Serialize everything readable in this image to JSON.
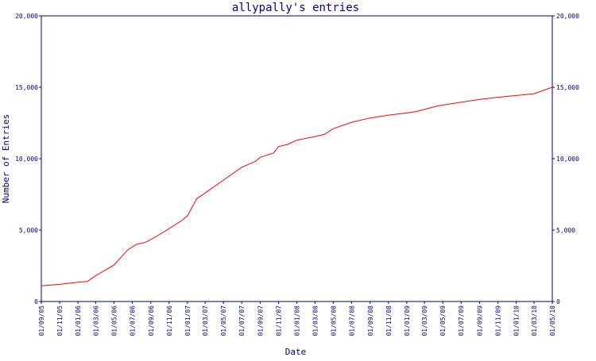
{
  "chart_data": {
    "type": "line",
    "title": "allypally's entries",
    "xlabel": "Date",
    "ylabel": "Number of Entries",
    "y_ticks": [
      "0",
      "5,000",
      "10,000",
      "15,000",
      "20,000"
    ],
    "y_tick_values": [
      0,
      5000,
      10000,
      15000,
      20000
    ],
    "ylim": [
      0,
      20000
    ],
    "x_ticks": [
      "01/09/05",
      "01/11/05",
      "01/01/06",
      "01/03/06",
      "01/05/06",
      "01/07/06",
      "01/09/06",
      "01/11/06",
      "01/01/07",
      "01/03/07",
      "01/05/07",
      "01/07/07",
      "01/09/07",
      "01/11/07",
      "01/01/08",
      "01/03/08",
      "01/05/08",
      "01/07/08",
      "01/09/08",
      "01/11/08",
      "01/01/09",
      "01/03/09",
      "01/05/09",
      "01/07/09",
      "01/09/09",
      "01/11/09",
      "01/01/10",
      "01/03/10",
      "01/05/10"
    ],
    "x_tick_dates": [
      "2005-09-01",
      "2005-11-01",
      "2006-01-01",
      "2006-03-01",
      "2006-05-01",
      "2006-07-01",
      "2006-09-01",
      "2006-11-01",
      "2007-01-01",
      "2007-03-01",
      "2007-05-01",
      "2007-07-01",
      "2007-09-01",
      "2007-11-01",
      "2008-01-01",
      "2008-03-01",
      "2008-05-01",
      "2008-07-01",
      "2008-09-01",
      "2008-11-01",
      "2009-01-01",
      "2009-03-01",
      "2009-05-01",
      "2009-07-01",
      "2009-09-01",
      "2009-11-01",
      "2010-01-01",
      "2010-03-01",
      "2010-05-01"
    ],
    "xlim": [
      "2005-09-01",
      "2010-05-01"
    ],
    "grid": false,
    "series": [
      {
        "color": "#ff0000",
        "points": [
          {
            "x": "2005-09-01",
            "y": 1100
          },
          {
            "x": "2005-11-01",
            "y": 1200
          },
          {
            "x": "2006-01-01",
            "y": 1350
          },
          {
            "x": "2006-02-01",
            "y": 1400
          },
          {
            "x": "2006-03-01",
            "y": 1800
          },
          {
            "x": "2006-05-01",
            "y": 2550
          },
          {
            "x": "2006-06-15",
            "y": 3600
          },
          {
            "x": "2006-07-15",
            "y": 4000
          },
          {
            "x": "2006-08-15",
            "y": 4150
          },
          {
            "x": "2006-09-15",
            "y": 4500
          },
          {
            "x": "2006-11-01",
            "y": 5100
          },
          {
            "x": "2006-12-15",
            "y": 5700
          },
          {
            "x": "2007-01-01",
            "y": 6000
          },
          {
            "x": "2007-02-01",
            "y": 7200
          },
          {
            "x": "2007-03-01",
            "y": 7600
          },
          {
            "x": "2007-05-01",
            "y": 8500
          },
          {
            "x": "2007-07-01",
            "y": 9400
          },
          {
            "x": "2007-08-15",
            "y": 9800
          },
          {
            "x": "2007-09-01",
            "y": 10100
          },
          {
            "x": "2007-10-15",
            "y": 10400
          },
          {
            "x": "2007-11-01",
            "y": 10850
          },
          {
            "x": "2007-12-01",
            "y": 11000
          },
          {
            "x": "2008-01-01",
            "y": 11300
          },
          {
            "x": "2008-03-01",
            "y": 11550
          },
          {
            "x": "2008-04-01",
            "y": 11700
          },
          {
            "x": "2008-05-01",
            "y": 12100
          },
          {
            "x": "2008-07-01",
            "y": 12550
          },
          {
            "x": "2008-09-01",
            "y": 12850
          },
          {
            "x": "2008-11-01",
            "y": 13050
          },
          {
            "x": "2009-01-01",
            "y": 13200
          },
          {
            "x": "2009-02-01",
            "y": 13300
          },
          {
            "x": "2009-04-15",
            "y": 13700
          },
          {
            "x": "2009-07-01",
            "y": 13950
          },
          {
            "x": "2009-09-01",
            "y": 14150
          },
          {
            "x": "2009-11-01",
            "y": 14300
          },
          {
            "x": "2010-01-01",
            "y": 14420
          },
          {
            "x": "2010-03-01",
            "y": 14550
          },
          {
            "x": "2010-05-01",
            "y": 15000
          }
        ]
      }
    ]
  }
}
